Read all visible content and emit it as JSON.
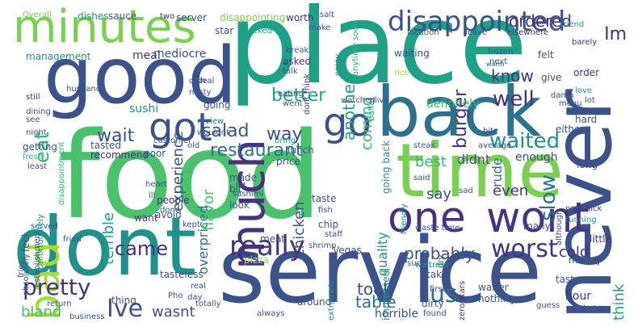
{
  "palette": {
    "dark_purple": "#46327e",
    "indigo": "#3b528b",
    "blue": "#365c8d",
    "teal_blue": "#2c728e",
    "teal": "#21918c",
    "green_teal": "#1fa187",
    "green": "#35b779",
    "bright_green": "#4ac16d",
    "lime": "#7ad151",
    "yellow_green": "#a5db36",
    "gray_teal": "#6fa8a0"
  },
  "words": [
    "place",
    "food",
    "service",
    "good",
    "time",
    "never",
    "back",
    "dont",
    "minutes",
    "much",
    "one",
    "wont",
    "disappointed",
    "got",
    "bad",
    "go",
    "really",
    "Ive",
    "worst",
    "us",
    "came",
    "restaurant",
    "wait",
    "pretty",
    "well",
    "waited",
    "slow",
    "salad",
    "way",
    "better",
    "burger",
    "another",
    "coming",
    "know",
    "eat",
    "Im",
    "ordered",
    "experience",
    "terrible",
    "overpriced",
    "flavor",
    "chicken",
    "quality",
    "say",
    "best",
    "didnt",
    "probably",
    "even",
    "took",
    "table",
    "think",
    "bland",
    "wasnt",
    "cold",
    "rude",
    "definitely",
    "meal",
    "mediocre",
    "sushi",
    "going",
    "management",
    "dishes",
    "sauce",
    "Overall",
    "two",
    "server",
    "disappointing",
    "worth",
    "salt",
    "star",
    "sucked",
    "make",
    "location",
    "leave",
    "elsewhere",
    "friend",
    "enjoy",
    "anytime soon",
    "barely",
    "waiting",
    "felt",
    "next",
    "give",
    "order",
    "love",
    "frozen",
    "warm",
    "rice",
    "buffet",
    "asked",
    "talk",
    "break",
    "dont think",
    "eating",
    "went",
    "nasty",
    "husband",
    "still",
    "dining",
    "dish",
    "see",
    "review",
    "night",
    "tasted",
    "getting",
    "recommend",
    "poor",
    "old",
    "customer",
    "price",
    "steak",
    "average",
    "either",
    "lunch",
    "bring",
    "enough",
    "hard",
    "made",
    "bit",
    "long",
    "going back",
    "fresh",
    "least",
    "feel",
    "said",
    "served",
    "Unfortunately",
    "disappointment",
    "heart",
    "ill",
    "let",
    "sashimi",
    "people",
    "done",
    "look",
    "taste",
    "fish",
    "sad",
    "need",
    "sick",
    "friendly",
    "waste time",
    "running",
    "although",
    "little",
    "many",
    "want",
    "avoid",
    "kept",
    "chip",
    "dry",
    "fried",
    "fries",
    "staff",
    "establishment",
    "meat",
    "shrimp",
    "Vegas",
    "suck",
    "waitress",
    "money",
    "absolutely",
    "pizza",
    "tasteless",
    "real",
    "day",
    "return",
    "business",
    "thing",
    "totally",
    "always",
    "around",
    "extremely",
    "take",
    "first",
    "found",
    "waiter",
    "nothing",
    "impressed",
    "zero stars",
    "horrible",
    "dirty",
    "hour",
    "tasty",
    "guess",
    "hot",
    "deal",
    "wouldnt",
    "menu",
    "lot",
    "damn",
    "bite",
    "live",
    "watched",
    "Pho"
  ]
}
